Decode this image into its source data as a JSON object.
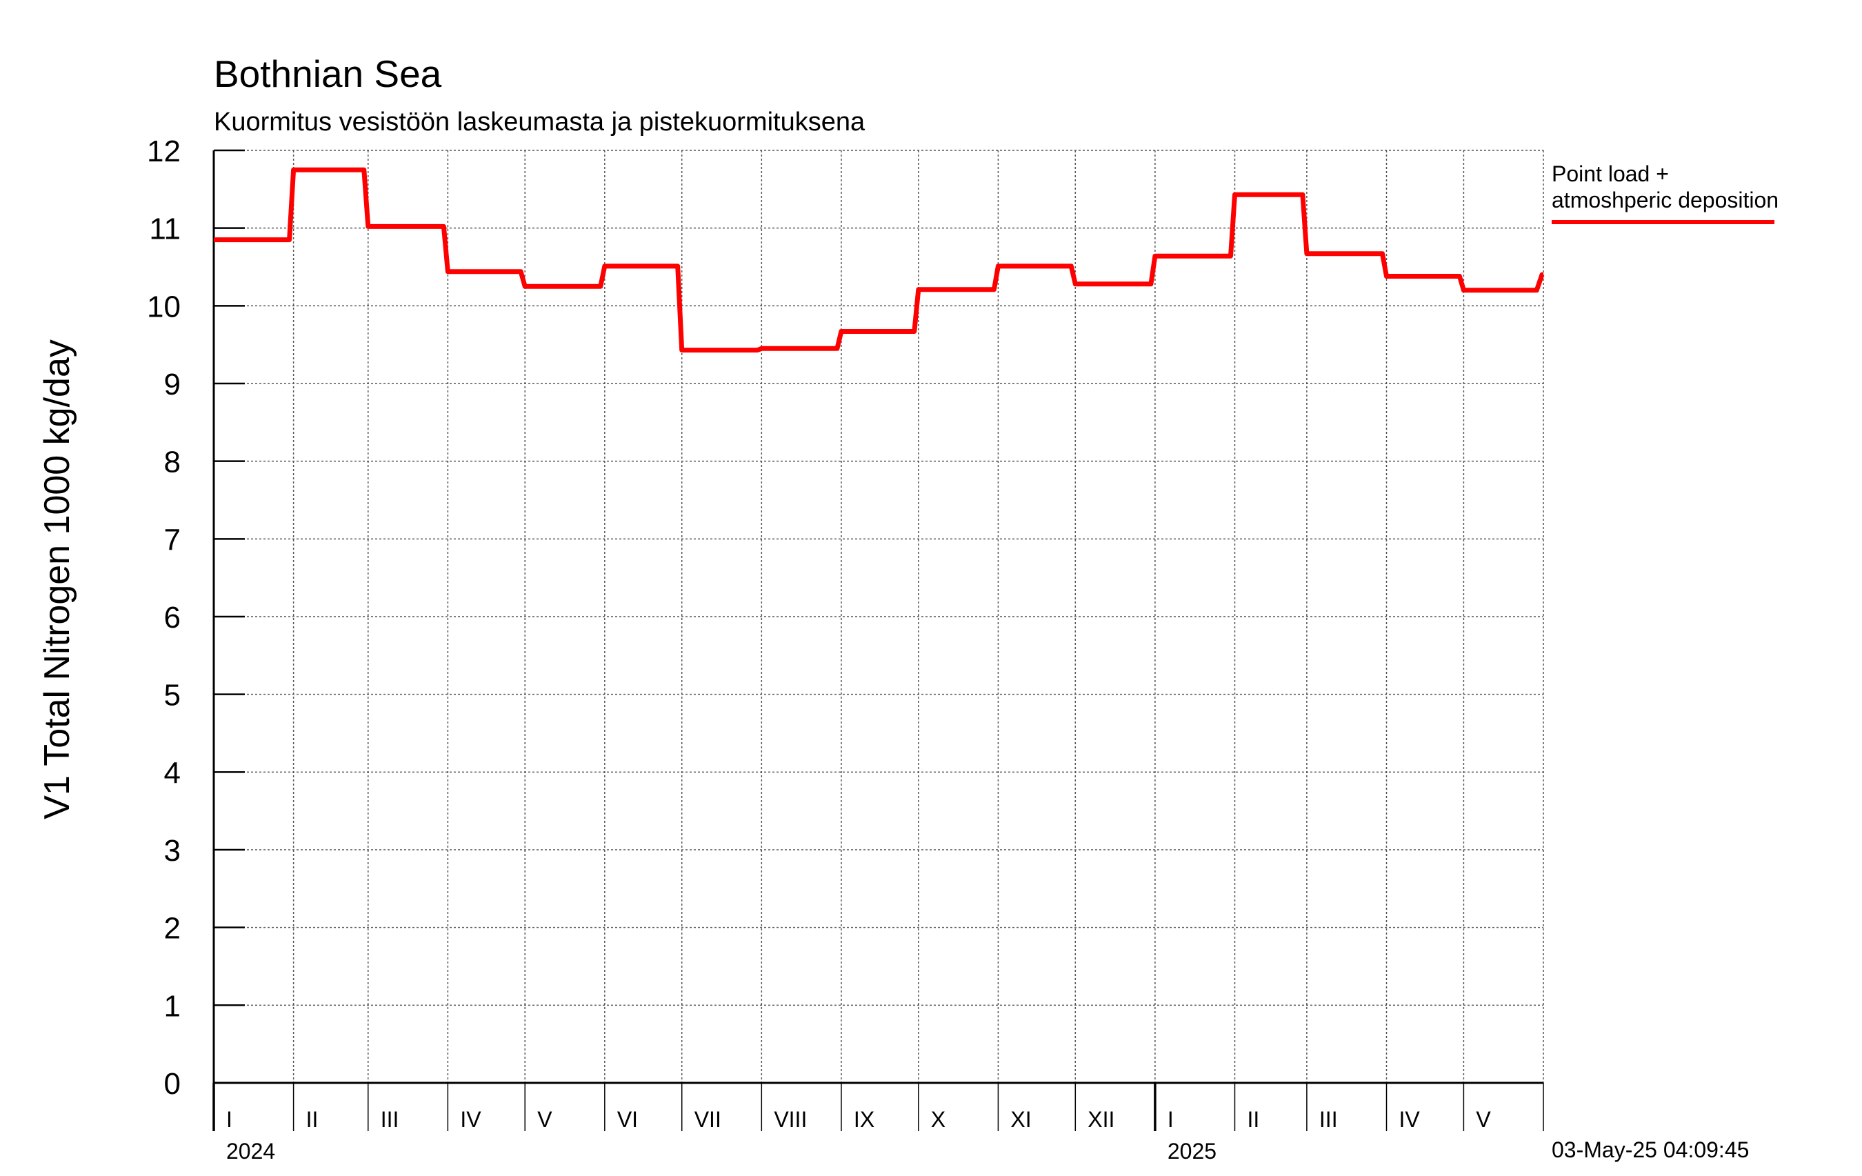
{
  "chart_data": {
    "type": "line",
    "title": "Bothnian Sea",
    "subtitle": "Kuormitus vesistöön laskeumasta ja pistekuormituksena",
    "ylabel": "V1 Total Nitrogen 1000 kg/day",
    "xlabel": "",
    "ylim": [
      0,
      12
    ],
    "yticks": [
      0,
      1,
      2,
      3,
      4,
      5,
      6,
      7,
      8,
      9,
      10,
      11,
      12
    ],
    "xlim": [
      "2024-01-01",
      "2025-05-31"
    ],
    "grid": true,
    "month_labels": [
      "I",
      "II",
      "III",
      "IV",
      "V",
      "VI",
      "VII",
      "VIII",
      "IX",
      "X",
      "XI",
      "XII",
      "I",
      "II",
      "III",
      "IV",
      "V"
    ],
    "year_labels": [
      {
        "label": "2024",
        "date": "2024-01-01"
      },
      {
        "label": "2025",
        "date": "2025-01-01"
      }
    ],
    "legend": {
      "position": "top-right"
    },
    "series": [
      {
        "name": "Point load + atmoshperic deposition",
        "color": "#ff0000",
        "style": "step",
        "points": [
          {
            "x": "2024-01-01",
            "y": 10.85
          },
          {
            "x": "2024-02-01",
            "y": 11.75
          },
          {
            "x": "2024-03-01",
            "y": 11.02
          },
          {
            "x": "2024-04-01",
            "y": 10.44
          },
          {
            "x": "2024-05-01",
            "y": 10.25
          },
          {
            "x": "2024-06-01",
            "y": 10.51
          },
          {
            "x": "2024-07-01",
            "y": 9.43
          },
          {
            "x": "2024-08-01",
            "y": 9.45
          },
          {
            "x": "2024-09-01",
            "y": 9.67
          },
          {
            "x": "2024-10-01",
            "y": 10.21
          },
          {
            "x": "2024-11-01",
            "y": 10.51
          },
          {
            "x": "2024-12-01",
            "y": 10.28
          },
          {
            "x": "2025-01-01",
            "y": 10.64
          },
          {
            "x": "2025-02-01",
            "y": 11.43
          },
          {
            "x": "2025-03-01",
            "y": 10.67
          },
          {
            "x": "2025-04-01",
            "y": 10.38
          },
          {
            "x": "2025-05-01",
            "y": 10.2
          },
          {
            "x": "2025-05-31",
            "y": 10.4
          }
        ]
      }
    ]
  },
  "timestamp": "03-May-25 04:09:45"
}
